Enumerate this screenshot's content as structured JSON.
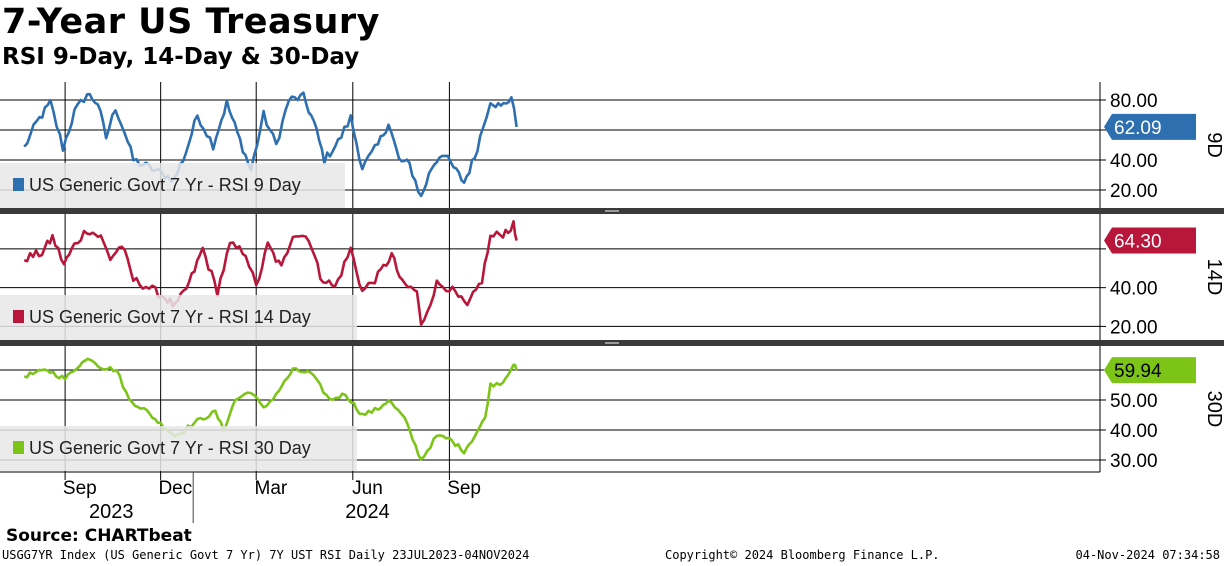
{
  "header": {
    "title": "7-Year US Treasury",
    "subtitle": "RSI 9-Day, 14-Day & 30-Day"
  },
  "source": "Source: CHARTbeat",
  "footer": {
    "left": "USGG7YR Index (US Generic Govt 7 Yr) 7Y UST RSI  Daily 23JUL2023-04NOV2024",
    "center": "Copyright© 2024 Bloomberg Finance L.P.",
    "right": "04-Nov-2024 07:34:58"
  },
  "chart_data": {
    "type": "line",
    "x_start": "2023-07-23",
    "x_end": "2024-11-04",
    "x_months": [
      {
        "label": "Sep",
        "date": "2023-09-15"
      },
      {
        "label": "Dec",
        "date": "2023-12-15"
      },
      {
        "label": "Mar",
        "date": "2024-03-15"
      },
      {
        "label": "Jun",
        "date": "2024-06-15"
      },
      {
        "label": "Sep",
        "date": "2024-09-15"
      }
    ],
    "x_years": [
      {
        "label": "2023",
        "date": "2023-10-15"
      },
      {
        "label": "2024",
        "date": "2024-06-15"
      }
    ],
    "panels": [
      {
        "id": "rsi9",
        "side_label": "9D",
        "legend": "US Generic Govt 7 Yr - RSI 9 Day",
        "color": "#2e6fb0",
        "last_value": 62.09,
        "last_label": "62.09",
        "ylim": [
          8,
          92
        ],
        "ticks": [
          {
            "v": 80,
            "label": "80.00"
          },
          {
            "v": 40,
            "label": "40.00"
          },
          {
            "v": 20,
            "label": "20.00"
          }
        ],
        "gridlines": [
          80,
          60,
          40,
          20
        ],
        "anchors": [
          {
            "date": "2023-07-24",
            "value": 48
          },
          {
            "date": "2023-08-05",
            "value": 65
          },
          {
            "date": "2023-08-18",
            "value": 78
          },
          {
            "date": "2023-08-30",
            "value": 48
          },
          {
            "date": "2023-09-10",
            "value": 72
          },
          {
            "date": "2023-09-22",
            "value": 84
          },
          {
            "date": "2023-10-02",
            "value": 78
          },
          {
            "date": "2023-10-10",
            "value": 55
          },
          {
            "date": "2023-10-19",
            "value": 75
          },
          {
            "date": "2023-10-28",
            "value": 58
          },
          {
            "date": "2023-11-05",
            "value": 40
          },
          {
            "date": "2023-11-20",
            "value": 35
          },
          {
            "date": "2023-12-05",
            "value": 30
          },
          {
            "date": "2023-12-14",
            "value": 27
          },
          {
            "date": "2023-12-25",
            "value": 45
          },
          {
            "date": "2024-01-05",
            "value": 70
          },
          {
            "date": "2024-01-20",
            "value": 50
          },
          {
            "date": "2024-02-02",
            "value": 78
          },
          {
            "date": "2024-02-12",
            "value": 58
          },
          {
            "date": "2024-02-25",
            "value": 33
          },
          {
            "date": "2024-03-08",
            "value": 70
          },
          {
            "date": "2024-03-20",
            "value": 50
          },
          {
            "date": "2024-04-01",
            "value": 80
          },
          {
            "date": "2024-04-15",
            "value": 82
          },
          {
            "date": "2024-04-25",
            "value": 65
          },
          {
            "date": "2024-05-05",
            "value": 40
          },
          {
            "date": "2024-05-18",
            "value": 52
          },
          {
            "date": "2024-05-30",
            "value": 68
          },
          {
            "date": "2024-06-10",
            "value": 35
          },
          {
            "date": "2024-06-25",
            "value": 50
          },
          {
            "date": "2024-07-05",
            "value": 65
          },
          {
            "date": "2024-07-15",
            "value": 40
          },
          {
            "date": "2024-07-25",
            "value": 37
          },
          {
            "date": "2024-08-05",
            "value": 15
          },
          {
            "date": "2024-08-15",
            "value": 35
          },
          {
            "date": "2024-08-25",
            "value": 45
          },
          {
            "date": "2024-09-05",
            "value": 35
          },
          {
            "date": "2024-09-15",
            "value": 25
          },
          {
            "date": "2024-09-25",
            "value": 42
          },
          {
            "date": "2024-10-03",
            "value": 62
          },
          {
            "date": "2024-10-10",
            "value": 80
          },
          {
            "date": "2024-10-20",
            "value": 75
          },
          {
            "date": "2024-10-30",
            "value": 82
          },
          {
            "date": "2024-11-04",
            "value": 62.09
          }
        ]
      },
      {
        "id": "rsi14",
        "side_label": "14D",
        "legend": "US Generic Govt 7 Yr - RSI 14 Day",
        "color": "#b8163a",
        "last_value": 64.3,
        "last_label": "64.30",
        "ylim": [
          13,
          78
        ],
        "ticks": [
          {
            "v": 40,
            "label": "40.00"
          },
          {
            "v": 20,
            "label": "20.00"
          }
        ],
        "gridlines": [
          60,
          40,
          20
        ],
        "anchors": [
          {
            "date": "2023-07-24",
            "value": 55
          },
          {
            "date": "2023-08-10",
            "value": 58
          },
          {
            "date": "2023-08-20",
            "value": 66
          },
          {
            "date": "2023-08-31",
            "value": 52
          },
          {
            "date": "2023-09-10",
            "value": 62
          },
          {
            "date": "2023-09-22",
            "value": 70
          },
          {
            "date": "2023-10-05",
            "value": 66
          },
          {
            "date": "2023-10-14",
            "value": 55
          },
          {
            "date": "2023-10-25",
            "value": 62
          },
          {
            "date": "2023-11-05",
            "value": 44
          },
          {
            "date": "2023-11-20",
            "value": 40
          },
          {
            "date": "2023-12-05",
            "value": 35
          },
          {
            "date": "2023-12-15",
            "value": 30
          },
          {
            "date": "2023-12-28",
            "value": 42
          },
          {
            "date": "2024-01-10",
            "value": 60
          },
          {
            "date": "2024-01-24",
            "value": 38
          },
          {
            "date": "2024-02-05",
            "value": 62
          },
          {
            "date": "2024-02-20",
            "value": 58
          },
          {
            "date": "2024-03-01",
            "value": 40
          },
          {
            "date": "2024-03-12",
            "value": 62
          },
          {
            "date": "2024-03-25",
            "value": 50
          },
          {
            "date": "2024-04-05",
            "value": 68
          },
          {
            "date": "2024-04-20",
            "value": 66
          },
          {
            "date": "2024-05-01",
            "value": 46
          },
          {
            "date": "2024-05-15",
            "value": 40
          },
          {
            "date": "2024-05-30",
            "value": 60
          },
          {
            "date": "2024-06-10",
            "value": 38
          },
          {
            "date": "2024-06-25",
            "value": 46
          },
          {
            "date": "2024-07-08",
            "value": 57
          },
          {
            "date": "2024-07-18",
            "value": 42
          },
          {
            "date": "2024-08-01",
            "value": 38
          },
          {
            "date": "2024-08-05",
            "value": 20
          },
          {
            "date": "2024-08-20",
            "value": 42
          },
          {
            "date": "2024-09-01",
            "value": 40
          },
          {
            "date": "2024-09-18",
            "value": 30
          },
          {
            "date": "2024-10-02",
            "value": 44
          },
          {
            "date": "2024-10-10",
            "value": 66
          },
          {
            "date": "2024-10-22",
            "value": 68
          },
          {
            "date": "2024-11-01",
            "value": 72
          },
          {
            "date": "2024-11-04",
            "value": 64.3
          }
        ]
      },
      {
        "id": "rsi30",
        "side_label": "30D",
        "legend": "US Generic Govt 7 Yr - RSI 30 Day",
        "color": "#7cc518",
        "last_value": 59.94,
        "last_label": "59.94",
        "ylim": [
          26,
          68
        ],
        "ticks": [
          {
            "v": 50,
            "label": "50.00"
          },
          {
            "v": 40,
            "label": "40.00"
          },
          {
            "v": 30,
            "label": "30.00"
          }
        ],
        "gridlines": [
          60,
          50,
          40,
          30
        ],
        "anchors": [
          {
            "date": "2023-07-24",
            "value": 58
          },
          {
            "date": "2023-08-15",
            "value": 60
          },
          {
            "date": "2023-09-01",
            "value": 57
          },
          {
            "date": "2023-09-15",
            "value": 62
          },
          {
            "date": "2023-09-25",
            "value": 64
          },
          {
            "date": "2023-10-05",
            "value": 61
          },
          {
            "date": "2023-10-20",
            "value": 60
          },
          {
            "date": "2023-11-01",
            "value": 50
          },
          {
            "date": "2023-11-15",
            "value": 47
          },
          {
            "date": "2023-12-01",
            "value": 42
          },
          {
            "date": "2023-12-15",
            "value": 38
          },
          {
            "date": "2024-01-05",
            "value": 43
          },
          {
            "date": "2024-01-22",
            "value": 46
          },
          {
            "date": "2024-01-30",
            "value": 40
          },
          {
            "date": "2024-02-10",
            "value": 50
          },
          {
            "date": "2024-02-25",
            "value": 53
          },
          {
            "date": "2024-03-08",
            "value": 47
          },
          {
            "date": "2024-03-20",
            "value": 52
          },
          {
            "date": "2024-04-05",
            "value": 60
          },
          {
            "date": "2024-04-22",
            "value": 59
          },
          {
            "date": "2024-05-10",
            "value": 50
          },
          {
            "date": "2024-05-25",
            "value": 52
          },
          {
            "date": "2024-06-10",
            "value": 45
          },
          {
            "date": "2024-06-25",
            "value": 47
          },
          {
            "date": "2024-07-05",
            "value": 50
          },
          {
            "date": "2024-07-20",
            "value": 44
          },
          {
            "date": "2024-08-05",
            "value": 30
          },
          {
            "date": "2024-08-20",
            "value": 38
          },
          {
            "date": "2024-09-01",
            "value": 37
          },
          {
            "date": "2024-09-15",
            "value": 33
          },
          {
            "date": "2024-09-25",
            "value": 38
          },
          {
            "date": "2024-10-05",
            "value": 44
          },
          {
            "date": "2024-10-10",
            "value": 55
          },
          {
            "date": "2024-10-22",
            "value": 56
          },
          {
            "date": "2024-11-01",
            "value": 62
          },
          {
            "date": "2024-11-04",
            "value": 59.94
          }
        ]
      }
    ]
  }
}
